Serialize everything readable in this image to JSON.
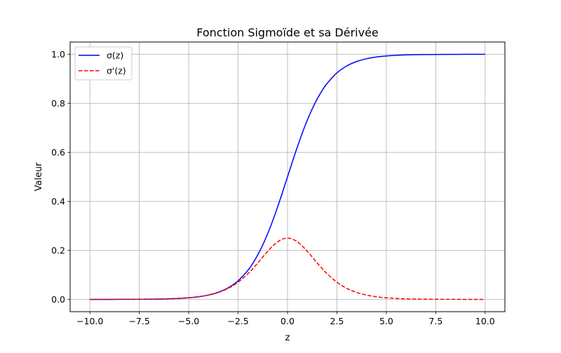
{
  "chart_data": {
    "type": "line",
    "title": "Fonction Sigmoïde et sa Dérivée",
    "xlabel": "z",
    "ylabel": "Valeur",
    "xlim": [
      -11.0,
      11.0
    ],
    "ylim": [
      -0.05,
      1.05
    ],
    "xticks": [
      -10.0,
      -7.5,
      -5.0,
      -2.5,
      0.0,
      2.5,
      5.0,
      7.5,
      10.0
    ],
    "xtick_labels": [
      "−10.0",
      "−7.5",
      "−5.0",
      "−2.5",
      "0.0",
      "2.5",
      "5.0",
      "7.5",
      "10.0"
    ],
    "yticks": [
      0.0,
      0.2,
      0.4,
      0.6,
      0.8,
      1.0
    ],
    "ytick_labels": [
      "0.0",
      "0.2",
      "0.4",
      "0.6",
      "0.8",
      "1.0"
    ],
    "grid": true,
    "legend_position": "top-left",
    "x": [
      -10,
      -9,
      -8,
      -7,
      -6,
      -5,
      -4.5,
      -4,
      -3.5,
      -3,
      -2.5,
      -2,
      -1.75,
      -1.5,
      -1.25,
      -1,
      -0.75,
      -0.5,
      -0.25,
      0,
      0.25,
      0.5,
      0.75,
      1,
      1.25,
      1.5,
      1.75,
      2,
      2.5,
      3,
      3.5,
      4,
      4.5,
      5,
      6,
      7,
      8,
      9,
      10
    ],
    "series": [
      {
        "name": "σ(z)",
        "color": "#0000ff",
        "style": "solid",
        "values": [
          5e-05,
          0.00012,
          0.00034,
          0.00091,
          0.00247,
          0.00669,
          0.01099,
          0.01799,
          0.02931,
          0.04743,
          0.07586,
          0.1192,
          0.14805,
          0.18243,
          0.2227,
          0.26894,
          0.32082,
          0.37754,
          0.43782,
          0.5,
          0.56218,
          0.62246,
          0.67918,
          0.73106,
          0.7773,
          0.81757,
          0.85195,
          0.8808,
          0.92414,
          0.95257,
          0.97069,
          0.98201,
          0.98901,
          0.99331,
          0.99753,
          0.99909,
          0.99966,
          0.99988,
          0.99995
        ]
      },
      {
        "name": "σ'(z)",
        "color": "#ff0000",
        "style": "dashed",
        "values": [
          5e-05,
          0.00012,
          0.00034,
          0.00091,
          0.00247,
          0.00665,
          0.01087,
          0.01767,
          0.02845,
          0.04518,
          0.07011,
          0.10499,
          0.12613,
          0.14915,
          0.17311,
          0.19661,
          0.21789,
          0.235,
          0.24613,
          0.25,
          0.24613,
          0.235,
          0.21789,
          0.19661,
          0.17311,
          0.14915,
          0.12613,
          0.10499,
          0.07011,
          0.04518,
          0.02845,
          0.01767,
          0.01087,
          0.00665,
          0.00247,
          0.00091,
          0.00034,
          0.00012,
          5e-05
        ]
      }
    ]
  }
}
